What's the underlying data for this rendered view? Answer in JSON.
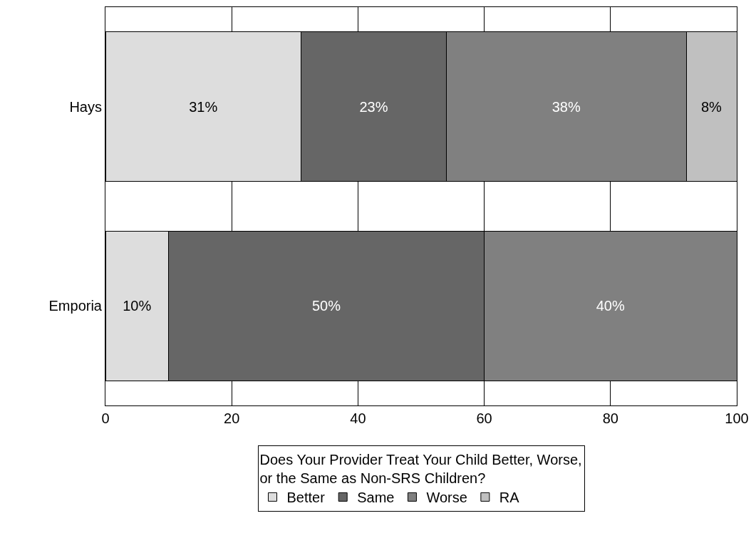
{
  "chart_data": {
    "type": "bar",
    "orientation": "horizontal",
    "stacked": true,
    "categories": [
      "Hays",
      "Emporia"
    ],
    "series": [
      {
        "name": "Better",
        "color": "#dddddd",
        "values": [
          31,
          10
        ],
        "value_labels": [
          "31%",
          "10%"
        ]
      },
      {
        "name": "Same",
        "color": "#666666",
        "values": [
          23,
          50
        ],
        "value_labels": [
          "23%",
          "50%"
        ]
      },
      {
        "name": "Worse",
        "color": "#808080",
        "values": [
          38,
          40
        ],
        "value_labels": [
          "38%",
          "40%"
        ]
      },
      {
        "name": "RA",
        "color": "#c0c0c0",
        "values": [
          8,
          null
        ],
        "value_labels": [
          "8%",
          null
        ]
      }
    ],
    "legend_title": "Does Your Provider Treat Your Child Better, Worse,\nor the Same as Non-SRS Children?",
    "xlim": [
      0,
      100
    ],
    "xticks": [
      0,
      20,
      40,
      60,
      80,
      100
    ],
    "grid": "x",
    "legend": "bottom"
  }
}
